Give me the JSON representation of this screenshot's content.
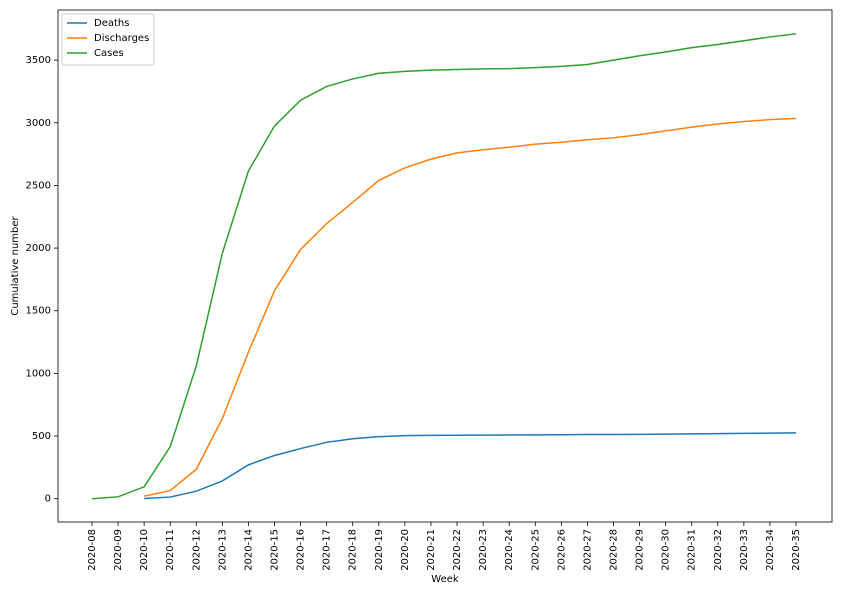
{
  "chart_data": {
    "type": "line",
    "x_label": "Week",
    "y_label": "Cumulative number",
    "categories": [
      "2020-08",
      "2020-09",
      "2020-10",
      "2020-11",
      "2020-12",
      "2020-13",
      "2020-14",
      "2020-15",
      "2020-16",
      "2020-17",
      "2020-18",
      "2020-19",
      "2020-20",
      "2020-21",
      "2020-22",
      "2020-23",
      "2020-24",
      "2020-25",
      "2020-26",
      "2020-27",
      "2020-28",
      "2020-29",
      "2020-30",
      "2020-31",
      "2020-32",
      "2020-33",
      "2020-34",
      "2020-35"
    ],
    "series": [
      {
        "name": "Deaths",
        "color": "#1f77b4",
        "values": [
          null,
          null,
          2,
          13,
          60,
          142,
          270,
          345,
          400,
          450,
          478,
          495,
          503,
          505,
          506,
          507,
          508,
          509,
          510,
          512,
          512,
          513,
          515,
          517,
          519,
          521,
          523,
          525
        ]
      },
      {
        "name": "Discharges",
        "color": "#ff7f0e",
        "values": [
          null,
          null,
          20,
          65,
          235,
          640,
          1170,
          1660,
          1990,
          2195,
          2365,
          2540,
          2640,
          2710,
          2760,
          2785,
          2805,
          2830,
          2845,
          2865,
          2880,
          2905,
          2935,
          2965,
          2990,
          3010,
          3025,
          3035
        ]
      },
      {
        "name": "Cases",
        "color": "#2ca02c",
        "values": [
          0,
          15,
          95,
          415,
          1060,
          1960,
          2615,
          2975,
          3180,
          3290,
          3350,
          3395,
          3410,
          3420,
          3425,
          3430,
          3432,
          3440,
          3450,
          3465,
          3500,
          3535,
          3565,
          3600,
          3625,
          3655,
          3685,
          3710
        ]
      }
    ],
    "ylim": [
      -186,
      3900
    ],
    "yticks": [
      0,
      500,
      1000,
      1500,
      2000,
      2500,
      3000,
      3500
    ],
    "grid": false,
    "legend": "upper-left"
  }
}
